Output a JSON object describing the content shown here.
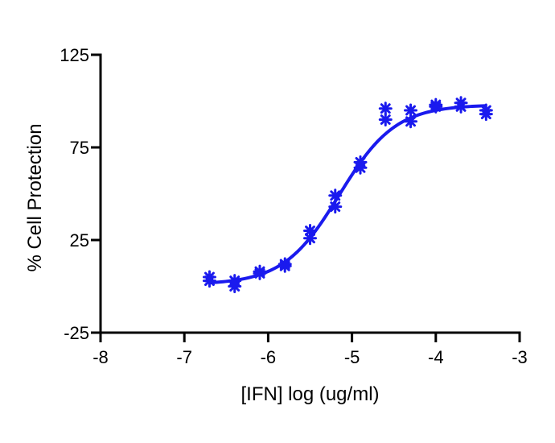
{
  "chart_data": {
    "type": "scatter",
    "title": "",
    "xlabel": "[IFN] log (ug/ml)",
    "ylabel": "% Cell Protection",
    "xlim": [
      -8,
      -3
    ],
    "ylim": [
      -25,
      125
    ],
    "xticks": [
      -8,
      -7,
      -6,
      -5,
      -4,
      -3
    ],
    "yticks": [
      -25,
      25,
      75,
      125
    ],
    "xtick_labels": [
      "-8",
      "-7",
      "-6",
      "-5",
      "-4",
      "-3"
    ],
    "ytick_labels": [
      "-25",
      "25",
      "75",
      "125"
    ],
    "grid": false,
    "legend": "none",
    "colors": {
      "series": "#1a1aee",
      "axes": "#000000"
    },
    "series": [
      {
        "marker": "asterisk",
        "points": [
          {
            "x": -6.7,
            "y": 3
          },
          {
            "x": -6.7,
            "y": 5
          },
          {
            "x": -6.4,
            "y": 0
          },
          {
            "x": -6.4,
            "y": 3
          },
          {
            "x": -6.1,
            "y": 7
          },
          {
            "x": -6.1,
            "y": 8
          },
          {
            "x": -5.8,
            "y": 11
          },
          {
            "x": -5.8,
            "y": 12
          },
          {
            "x": -5.5,
            "y": 26
          },
          {
            "x": -5.5,
            "y": 30
          },
          {
            "x": -5.2,
            "y": 43
          },
          {
            "x": -5.2,
            "y": 49
          },
          {
            "x": -4.9,
            "y": 64
          },
          {
            "x": -4.9,
            "y": 67
          },
          {
            "x": -4.6,
            "y": 90
          },
          {
            "x": -4.6,
            "y": 96
          },
          {
            "x": -4.3,
            "y": 89
          },
          {
            "x": -4.3,
            "y": 95
          },
          {
            "x": -4.0,
            "y": 97
          },
          {
            "x": -4.0,
            "y": 98
          },
          {
            "x": -3.7,
            "y": 97
          },
          {
            "x": -3.7,
            "y": 99
          },
          {
            "x": -3.4,
            "y": 93
          },
          {
            "x": -3.4,
            "y": 95
          }
        ]
      }
    ],
    "fit": {
      "type": "4PL",
      "bottom": 1,
      "top": 98,
      "log_ec50": -5.15,
      "hill_slope": 1.3,
      "x_range": [
        -6.7,
        -3.4
      ]
    }
  }
}
